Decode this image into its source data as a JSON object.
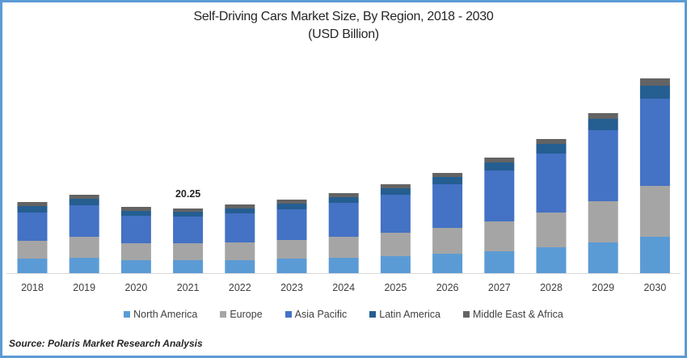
{
  "chart_data": {
    "type": "bar",
    "stacked": true,
    "title": "Self-Driving Cars Market Size, By Region, 2018 - 2030",
    "subtitle": "(USD Billion)",
    "xlabel": "",
    "ylabel": "",
    "categories": [
      "2018",
      "2019",
      "2020",
      "2021",
      "2022",
      "2023",
      "2024",
      "2025",
      "2026",
      "2027",
      "2028",
      "2029",
      "2030"
    ],
    "series": [
      {
        "name": "North America",
        "color": "#5b9bd5",
        "values": [
          4.56,
          4.81,
          4.05,
          4.05,
          4.05,
          4.56,
          4.81,
          5.32,
          6.08,
          6.84,
          8.1,
          9.62,
          11.39
        ]
      },
      {
        "name": "Europe",
        "color": "#a5a5a5",
        "values": [
          5.57,
          6.58,
          5.32,
          5.32,
          5.57,
          5.82,
          6.58,
          7.34,
          8.1,
          9.37,
          10.89,
          12.91,
          15.95
        ]
      },
      {
        "name": "Asia Pacific",
        "color": "#4472c4",
        "values": [
          8.86,
          9.87,
          8.61,
          8.35,
          9.11,
          9.62,
          10.63,
          11.9,
          13.67,
          15.95,
          18.48,
          22.28,
          27.34
        ]
      },
      {
        "name": "Latin America",
        "color": "#255e91",
        "values": [
          2.03,
          2.03,
          1.52,
          1.52,
          1.52,
          1.77,
          1.77,
          2.03,
          2.28,
          2.53,
          3.04,
          3.54,
          4.05
        ]
      },
      {
        "name": "Middle East & Africa",
        "color": "#636363",
        "values": [
          1.27,
          1.27,
          1.27,
          1.01,
          1.27,
          1.27,
          1.27,
          1.27,
          1.27,
          1.52,
          1.52,
          1.77,
          2.28
        ]
      }
    ],
    "annotations": [
      {
        "category": "2021",
        "text": "20.25"
      }
    ],
    "ylim": [
      0,
      65
    ],
    "grid": false,
    "legend_position": "bottom"
  },
  "footer": {
    "source": "Source: Polaris  Market Research Analysis"
  }
}
